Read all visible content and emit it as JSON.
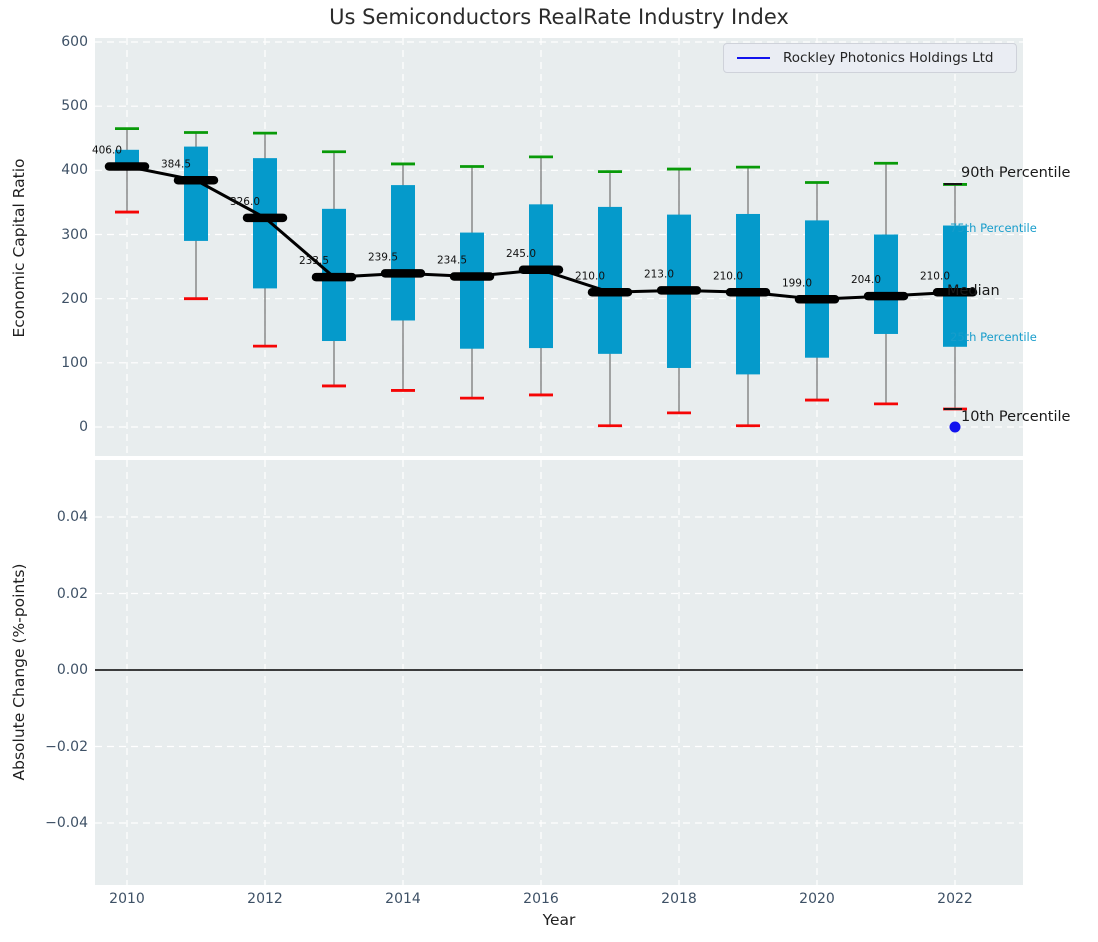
{
  "title": "Us Semiconductors RealRate Industry Index",
  "xlabel": "Year",
  "legend": {
    "label": "Rockley Photonics Holdings Ltd"
  },
  "colors": {
    "box_fill": "#059acb",
    "whisker": "#7a7a7a",
    "cap_high": "#089a08",
    "cap_low": "#f50505",
    "median_line": "#000000",
    "median_label": "#111111",
    "overlay_point": "#1212ee",
    "legend_line": "#1212ee",
    "axes_bg": "#e8edee",
    "grid": "#ffffff",
    "tick_label": "#3e5166",
    "annotation_dark": "#1a1a1a",
    "annotation_accent": "#189dcb",
    "zero_line": "#000000"
  },
  "chart_data": {
    "type": "boxplot",
    "title": "Us Semiconductors RealRate Industry Index",
    "xlabel": "Year",
    "top_panel": {
      "ylabel": "Economic Capital Ratio",
      "ylim": [
        -45,
        600
      ],
      "ytick_labels": [
        "0",
        "100",
        "200",
        "300",
        "400",
        "500",
        "600"
      ],
      "ytick_values": [
        0,
        100,
        200,
        300,
        400,
        500,
        600
      ],
      "xtick_labels": [
        "2010",
        "2012",
        "2014",
        "2016",
        "2018",
        "2020",
        "2022"
      ],
      "xtick_values": [
        2010,
        2012,
        2014,
        2016,
        2018,
        2020,
        2022
      ],
      "grid": true,
      "legend_position": "upper right",
      "boxes": [
        {
          "year": 2010,
          "p10": 335,
          "p25": 400,
          "median": 406.0,
          "p75": 432,
          "p90": 465,
          "median_label": "406.0"
        },
        {
          "year": 2011,
          "p10": 200,
          "p25": 290,
          "median": 384.5,
          "p75": 437,
          "p90": 459,
          "median_label": "384.5"
        },
        {
          "year": 2012,
          "p10": 126,
          "p25": 216,
          "median": 326.0,
          "p75": 419,
          "p90": 458,
          "median_label": "326.0"
        },
        {
          "year": 2013,
          "p10": 64,
          "p25": 134,
          "median": 233.5,
          "p75": 340,
          "p90": 429,
          "median_label": "233.5"
        },
        {
          "year": 2014,
          "p10": 57,
          "p25": 166,
          "median": 239.5,
          "p75": 377,
          "p90": 410,
          "median_label": "239.5"
        },
        {
          "year": 2015,
          "p10": 45,
          "p25": 122,
          "median": 234.5,
          "p75": 303,
          "p90": 406,
          "median_label": "234.5"
        },
        {
          "year": 2016,
          "p10": 50,
          "p25": 123,
          "median": 245.0,
          "p75": 347,
          "p90": 421,
          "median_label": "245.0"
        },
        {
          "year": 2017,
          "p10": 2,
          "p25": 114,
          "median": 210.0,
          "p75": 343,
          "p90": 398,
          "median_label": "210.0"
        },
        {
          "year": 2018,
          "p10": 22,
          "p25": 92,
          "median": 213.0,
          "p75": 331,
          "p90": 402,
          "median_label": "213.0"
        },
        {
          "year": 2019,
          "p10": 2,
          "p25": 82,
          "median": 210.0,
          "p75": 332,
          "p90": 405,
          "median_label": "210.0"
        },
        {
          "year": 2020,
          "p10": 42,
          "p25": 108,
          "median": 199.0,
          "p75": 322,
          "p90": 381,
          "median_label": "199.0"
        },
        {
          "year": 2021,
          "p10": 36,
          "p25": 145,
          "median": 204.0,
          "p75": 300,
          "p90": 411,
          "median_label": "204.0"
        },
        {
          "year": 2022,
          "p10": 28,
          "p25": 125,
          "median": 210.0,
          "p75": 314,
          "p90": 378,
          "median_label": "210.0"
        }
      ],
      "overlay_series": {
        "name": "Rockley Photonics Holdings Ltd",
        "points": [
          {
            "year": 2022,
            "value": 0
          }
        ]
      },
      "annotations": [
        {
          "role": "p90",
          "label": "90th Percentile"
        },
        {
          "role": "p75",
          "label": "75th Percentile"
        },
        {
          "role": "median",
          "label": "Median"
        },
        {
          "role": "p25",
          "label": "25th Percentile"
        },
        {
          "role": "p10",
          "label": "10th Percentile"
        }
      ]
    },
    "bottom_panel": {
      "ylabel": "Absolute Change (%-points)",
      "ytick_labels": [
        "0.04",
        "0.02",
        "0.00",
        "−0.02",
        "−0.04"
      ],
      "ytick_values": [
        0.04,
        0.02,
        0,
        -0.02,
        -0.04
      ],
      "xtick_labels": [
        "2010",
        "2012",
        "2014",
        "2016",
        "2018",
        "2020",
        "2022"
      ],
      "xtick_values": [
        2010,
        2012,
        2014,
        2016,
        2018,
        2020,
        2022
      ],
      "zero_line": 0,
      "grid": true,
      "series": []
    }
  }
}
